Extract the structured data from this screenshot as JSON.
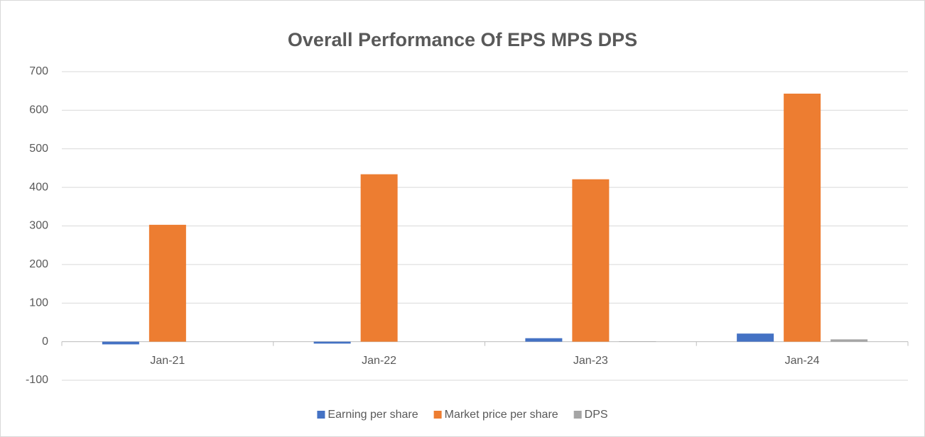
{
  "chart_data": {
    "type": "bar",
    "title": "Overall Performance Of EPS MPS DPS",
    "categories": [
      "Jan-21",
      "Jan-22",
      "Jan-23",
      "Jan-24"
    ],
    "series": [
      {
        "name": "Earning per share",
        "color": "#4472c4",
        "values": [
          -7,
          -5,
          9,
          21
        ]
      },
      {
        "name": "Market price per share",
        "color": "#ed7d31",
        "values": [
          303,
          434,
          421,
          643
        ]
      },
      {
        "name": "DPS",
        "color": "#a5a5a5",
        "values": [
          0,
          0,
          1,
          6
        ]
      }
    ],
    "ylim": [
      -100,
      700
    ],
    "yticks": [
      -100,
      0,
      100,
      200,
      300,
      400,
      500,
      600,
      700
    ],
    "grid": true,
    "legend": "bottom"
  }
}
